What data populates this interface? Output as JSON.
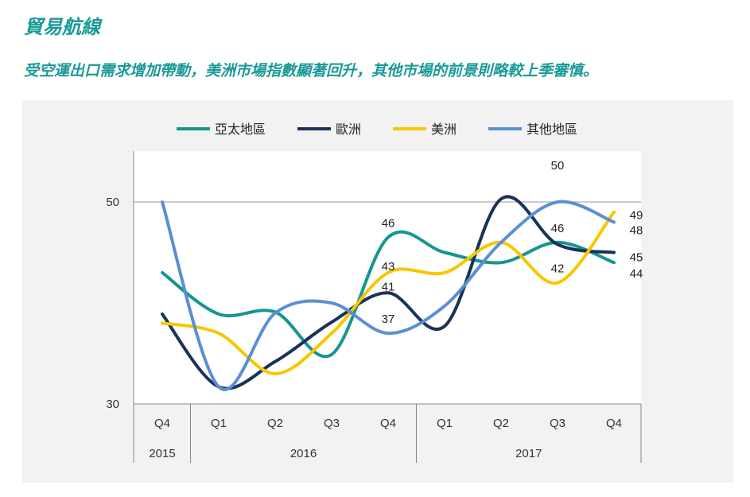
{
  "header": {
    "title": "貿易航線",
    "subtitle": "受空運出口需求增加帶動，美洲市場指數顯著回升，其他市場的前景則略較上季審慎。"
  },
  "chart_data": {
    "type": "line",
    "categories": [
      "Q4",
      "Q1",
      "Q2",
      "Q3",
      "Q4",
      "Q1",
      "Q2",
      "Q3",
      "Q4"
    ],
    "years": [
      {
        "label": "2015",
        "span": 1
      },
      {
        "label": "2016",
        "span": 4
      },
      {
        "label": "2017",
        "span": 4
      }
    ],
    "ylim": [
      30,
      50
    ],
    "yticks": [
      30,
      50
    ],
    "legend_position": "top",
    "series": [
      {
        "name": "亞太地區",
        "color": "#16968f",
        "values": [
          43,
          38.9,
          39.1,
          34.9,
          46.5,
          45,
          44,
          46,
          44
        ],
        "labels": {
          "4": "46",
          "7": "46",
          "8": "44"
        }
      },
      {
        "name": "歐洲",
        "color": "#1b3257",
        "values": [
          38.9,
          31.7,
          34.2,
          38.1,
          41,
          37.7,
          50.3,
          45.8,
          45
        ],
        "labels": {
          "4": "41",
          "8": "45"
        }
      },
      {
        "name": "美洲",
        "color": "#f7c600",
        "values": [
          38,
          37,
          33,
          37,
          43,
          43,
          46,
          42,
          49
        ],
        "labels": {
          "4": "43",
          "7": "42",
          "8": "49"
        }
      },
      {
        "name": "其他地區",
        "color": "#5b8fd4",
        "values": [
          50,
          31.7,
          39,
          40,
          37,
          39.7,
          46,
          50,
          48
        ],
        "labels": {
          "4": "37",
          "7": "50",
          "8": "48"
        }
      }
    ]
  }
}
